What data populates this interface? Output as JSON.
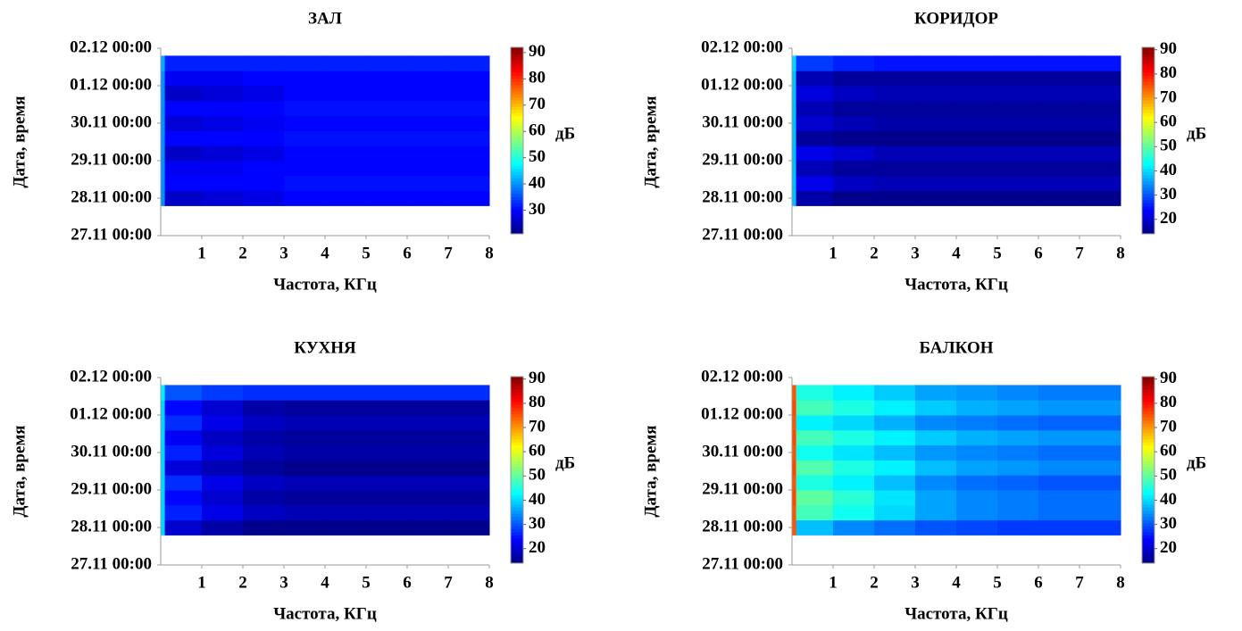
{
  "chart_data": [
    {
      "type": "heatmap",
      "title": "ЗАЛ",
      "xlabel": "Частота, КГц",
      "ylabel": "Дата, время",
      "xlim": [
        0,
        8
      ],
      "xticks": [
        1,
        2,
        3,
        4,
        5,
        6,
        7,
        8
      ],
      "ylim": [
        0,
        5
      ],
      "yticks": [
        {
          "value": 0,
          "label": "27.11 00:00"
        },
        {
          "value": 1,
          "label": "28.11 00:00"
        },
        {
          "value": 2,
          "label": "29.11 00:00"
        },
        {
          "value": 3,
          "label": "30.11 00:00"
        },
        {
          "value": 4,
          "label": "01.12 00:00"
        },
        {
          "value": 5,
          "label": "02.12 00:00"
        }
      ],
      "xbins": [
        0,
        0.1,
        1,
        2,
        3,
        4,
        5,
        6,
        7,
        8
      ],
      "ybins": [
        0.8,
        1.2,
        1.6,
        2.0,
        2.4,
        2.8,
        3.2,
        3.6,
        4.0,
        4.4,
        4.8
      ],
      "values": [
        [
          40,
          26,
          27,
          28,
          30,
          30,
          30,
          30,
          30
        ],
        [
          40,
          30,
          30,
          30,
          31,
          31,
          31,
          31,
          31
        ],
        [
          40,
          29,
          29,
          30,
          30,
          30,
          30,
          30,
          30
        ],
        [
          40,
          26,
          27,
          28,
          30,
          30,
          30,
          30,
          30
        ],
        [
          40,
          30,
          30,
          30,
          31,
          31,
          31,
          31,
          31
        ],
        [
          40,
          27,
          28,
          29,
          30,
          30,
          30,
          30,
          30
        ],
        [
          40,
          30,
          30,
          30,
          31,
          31,
          31,
          31,
          31
        ],
        [
          40,
          26,
          27,
          28,
          30,
          30,
          30,
          30,
          30
        ],
        [
          40,
          29,
          29,
          30,
          30,
          30,
          30,
          30,
          30
        ],
        [
          42,
          32,
          32,
          32,
          32,
          32,
          32,
          32,
          32
        ]
      ],
      "colormap": "jet",
      "zlim": [
        21,
        92
      ],
      "zticks": [
        30,
        40,
        50,
        60,
        70,
        80,
        90
      ],
      "zlabel": "дБ"
    },
    {
      "type": "heatmap",
      "title": "КОРИДОР",
      "xlabel": "Частота, КГц",
      "ylabel": "Дата, время",
      "xlim": [
        0,
        8
      ],
      "xticks": [
        1,
        2,
        3,
        4,
        5,
        6,
        7,
        8
      ],
      "ylim": [
        0,
        5
      ],
      "yticks": [
        {
          "value": 0,
          "label": "27.11 00:00"
        },
        {
          "value": 1,
          "label": "28.11 00:00"
        },
        {
          "value": 2,
          "label": "29.11 00:00"
        },
        {
          "value": 3,
          "label": "30.11 00:00"
        },
        {
          "value": 4,
          "label": "01.12 00:00"
        },
        {
          "value": 5,
          "label": "02.12 00:00"
        }
      ],
      "xbins": [
        0,
        0.1,
        1,
        2,
        3,
        4,
        5,
        6,
        7,
        8
      ],
      "ybins": [
        0.8,
        1.2,
        1.6,
        2.0,
        2.4,
        2.8,
        3.2,
        3.6,
        4.0,
        4.4,
        4.8
      ],
      "values": [
        [
          38,
          17,
          15,
          15,
          15,
          15,
          15,
          15,
          15
        ],
        [
          38,
          22,
          19,
          18,
          18,
          18,
          18,
          18,
          18
        ],
        [
          38,
          18,
          16,
          16,
          16,
          16,
          16,
          16,
          16
        ],
        [
          38,
          22,
          20,
          18,
          18,
          18,
          18,
          18,
          18
        ],
        [
          38,
          16,
          15,
          15,
          15,
          15,
          15,
          15,
          15
        ],
        [
          38,
          20,
          18,
          17,
          17,
          17,
          17,
          17,
          17
        ],
        [
          38,
          18,
          16,
          16,
          16,
          16,
          16,
          16,
          16
        ],
        [
          38,
          21,
          19,
          18,
          18,
          18,
          18,
          18,
          18
        ],
        [
          38,
          18,
          16,
          16,
          16,
          16,
          16,
          16,
          16
        ],
        [
          40,
          28,
          26,
          25,
          25,
          25,
          25,
          25,
          25
        ]
      ],
      "colormap": "jet",
      "zlim": [
        14,
        91
      ],
      "zticks": [
        20,
        30,
        40,
        50,
        60,
        70,
        80,
        90
      ],
      "zlabel": "дБ"
    },
    {
      "type": "heatmap",
      "title": "КУХНЯ",
      "xlabel": "Частота, КГц",
      "ylabel": "Дата, время",
      "xlim": [
        0,
        8
      ],
      "xticks": [
        1,
        2,
        3,
        4,
        5,
        6,
        7,
        8
      ],
      "ylim": [
        0,
        5
      ],
      "yticks": [
        {
          "value": 0,
          "label": "27.11 00:00"
        },
        {
          "value": 1,
          "label": "28.11 00:00"
        },
        {
          "value": 2,
          "label": "29.11 00:00"
        },
        {
          "value": 3,
          "label": "30.11 00:00"
        },
        {
          "value": 4,
          "label": "01.12 00:00"
        },
        {
          "value": 5,
          "label": "02.12 00:00"
        }
      ],
      "xbins": [
        0,
        0.1,
        1,
        2,
        3,
        4,
        5,
        6,
        7,
        8
      ],
      "ybins": [
        0.8,
        1.2,
        1.6,
        2.0,
        2.4,
        2.8,
        3.2,
        3.6,
        4.0,
        4.4,
        4.8
      ],
      "values": [
        [
          40,
          20,
          17,
          15,
          15,
          15,
          15,
          15,
          15
        ],
        [
          40,
          26,
          22,
          19,
          18,
          18,
          18,
          18,
          18
        ],
        [
          40,
          24,
          20,
          17,
          16,
          16,
          16,
          16,
          16
        ],
        [
          40,
          27,
          22,
          19,
          18,
          18,
          18,
          18,
          18
        ],
        [
          40,
          21,
          18,
          16,
          15,
          15,
          15,
          15,
          15
        ],
        [
          40,
          26,
          21,
          18,
          17,
          17,
          17,
          17,
          17
        ],
        [
          40,
          23,
          19,
          17,
          16,
          16,
          16,
          16,
          16
        ],
        [
          40,
          27,
          22,
          19,
          18,
          18,
          18,
          18,
          18
        ],
        [
          40,
          24,
          20,
          17,
          16,
          16,
          16,
          16,
          16
        ],
        [
          42,
          30,
          28,
          27,
          27,
          27,
          27,
          27,
          27
        ]
      ],
      "colormap": "jet",
      "zlim": [
        14,
        91
      ],
      "zticks": [
        20,
        30,
        40,
        50,
        60,
        70,
        80,
        90
      ],
      "zlabel": "дБ"
    },
    {
      "type": "heatmap",
      "title": "БАЛКОН",
      "xlabel": "Частота, КГц",
      "ylabel": "Дата, время",
      "xlim": [
        0,
        8
      ],
      "xticks": [
        1,
        2,
        3,
        4,
        5,
        6,
        7,
        8
      ],
      "ylim": [
        0,
        5
      ],
      "yticks": [
        {
          "value": 0,
          "label": "27.11 00:00"
        },
        {
          "value": 1,
          "label": "28.11 00:00"
        },
        {
          "value": 2,
          "label": "29.11 00:00"
        },
        {
          "value": 3,
          "label": "30.11 00:00"
        },
        {
          "value": 4,
          "label": "01.12 00:00"
        },
        {
          "value": 5,
          "label": "02.12 00:00"
        }
      ],
      "xbins": [
        0,
        0.1,
        1,
        2,
        3,
        4,
        5,
        6,
        7,
        8
      ],
      "ybins": [
        0.8,
        1.2,
        1.6,
        2.0,
        2.4,
        2.8,
        3.2,
        3.6,
        4.0,
        4.4,
        4.8
      ],
      "values": [
        [
          75,
          38,
          34,
          32,
          30,
          29,
          28,
          28,
          28
        ],
        [
          75,
          48,
          44,
          40,
          36,
          34,
          33,
          32,
          32
        ],
        [
          76,
          50,
          46,
          41,
          36,
          34,
          33,
          32,
          32
        ],
        [
          75,
          45,
          42,
          38,
          34,
          32,
          31,
          30,
          30
        ],
        [
          76,
          49,
          45,
          42,
          38,
          36,
          35,
          34,
          34
        ],
        [
          75,
          44,
          41,
          38,
          35,
          34,
          33,
          32,
          32
        ],
        [
          76,
          48,
          45,
          42,
          39,
          37,
          36,
          35,
          35
        ],
        [
          75,
          42,
          40,
          37,
          34,
          33,
          32,
          31,
          31
        ],
        [
          76,
          48,
          45,
          42,
          39,
          37,
          36,
          35,
          35
        ],
        [
          75,
          45,
          42,
          39,
          36,
          35,
          34,
          33,
          33
        ]
      ],
      "colormap": "jet",
      "zlim": [
        14,
        91
      ],
      "zticks": [
        20,
        30,
        40,
        50,
        60,
        70,
        80,
        90
      ],
      "zlabel": "дБ"
    }
  ]
}
